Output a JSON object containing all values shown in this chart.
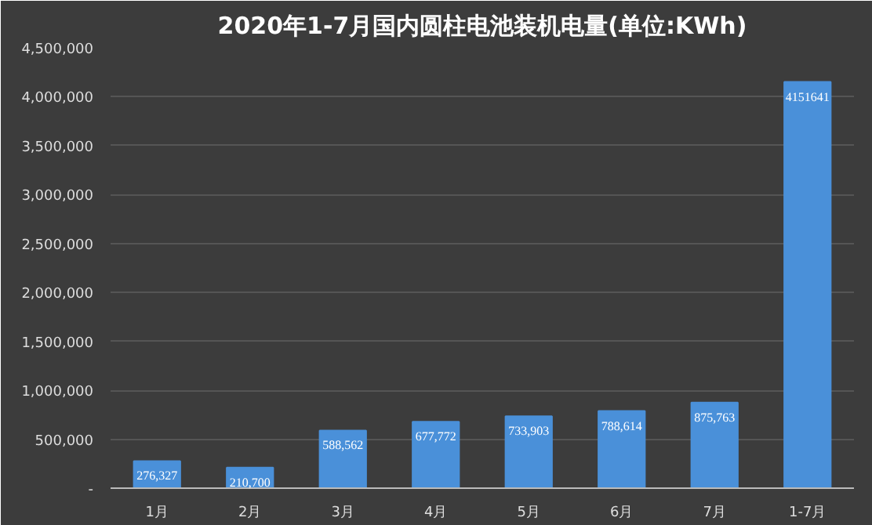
{
  "chart_data": {
    "type": "bar",
    "title": "2020年1-7月国内圆柱电池装机电量(单位:KWh)",
    "categories": [
      "1月",
      "2月",
      "3月",
      "4月",
      "5月",
      "6月",
      "7月",
      "1-7月"
    ],
    "values": [
      276327,
      210700,
      588562,
      677772,
      733903,
      788614,
      875763,
      4151641
    ],
    "value_labels": [
      "276,327",
      "210,700",
      "588,562",
      "677,772",
      "733,903",
      "788,614",
      "875,763",
      "4151641"
    ],
    "color": "#4a90d9",
    "ylim": [
      0,
      4500000
    ],
    "yticks": [
      {
        "value": 0,
        "label": "-"
      },
      {
        "value": 500000,
        "label": "500,000"
      },
      {
        "value": 1000000,
        "label": "1,000,000"
      },
      {
        "value": 1500000,
        "label": "1,500,000"
      },
      {
        "value": 2000000,
        "label": "2,000,000"
      },
      {
        "value": 2500000,
        "label": "2,500,000"
      },
      {
        "value": 3000000,
        "label": "3,000,000"
      },
      {
        "value": 3500000,
        "label": "3,500,000"
      },
      {
        "value": 4000000,
        "label": "4,000,000"
      },
      {
        "value": 4500000,
        "label": "4,500,000"
      }
    ],
    "grid": "y"
  }
}
